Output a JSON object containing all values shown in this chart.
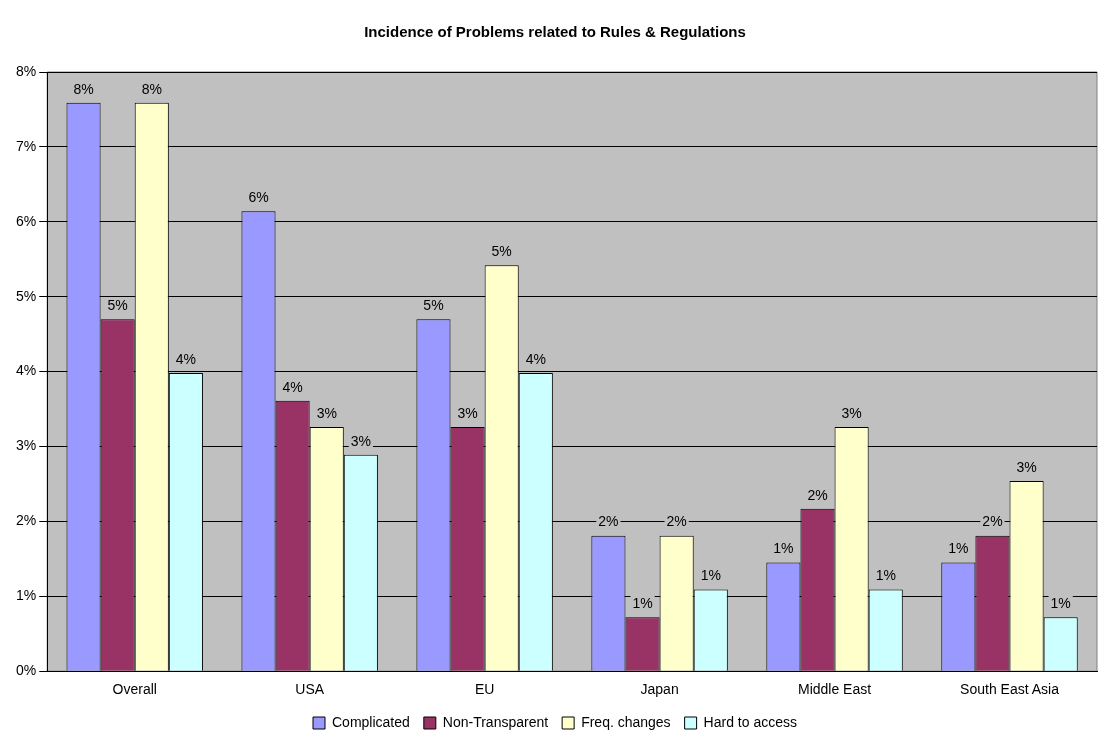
{
  "chart_data": {
    "type": "bar",
    "title": "Incidence of Problems related to Rules & Regulations",
    "categories": [
      "Overall",
      "USA",
      "EU",
      "Japan",
      "Middle East",
      "South East Asia"
    ],
    "series": [
      {
        "name": "Complicated",
        "color": "#9999ff",
        "values": [
          7.59,
          6.14,
          4.7,
          1.81,
          1.45,
          1.45
        ],
        "value_labels": [
          "8%",
          "6%",
          "5%",
          "2%",
          "1%",
          "1%"
        ]
      },
      {
        "name": "Non-Transparent",
        "color": "#993366",
        "values": [
          4.7,
          3.61,
          3.26,
          0.72,
          2.17,
          1.81
        ],
        "value_labels": [
          "5%",
          "4%",
          "3%",
          "1%",
          "2%",
          "2%"
        ]
      },
      {
        "name": "Freq. changes",
        "color": "#ffffcc",
        "values": [
          7.59,
          3.26,
          5.42,
          1.81,
          3.26,
          2.54
        ],
        "value_labels": [
          "8%",
          "3%",
          "5%",
          "2%",
          "3%",
          "3%"
        ]
      },
      {
        "name": "Hard to access",
        "color": "#ccffff",
        "values": [
          3.98,
          2.89,
          3.98,
          1.09,
          1.09,
          0.72
        ],
        "value_labels": [
          "4%",
          "3%",
          "4%",
          "1%",
          "1%",
          "1%"
        ]
      }
    ],
    "ylim": [
      0,
      8
    ],
    "yticks": [
      {
        "value": 0,
        "label": "0%"
      },
      {
        "value": 1,
        "label": "1%"
      },
      {
        "value": 2,
        "label": "2%"
      },
      {
        "value": 3,
        "label": "3%"
      },
      {
        "value": 4,
        "label": "4%"
      },
      {
        "value": 5,
        "label": "5%"
      },
      {
        "value": 6,
        "label": "6%"
      },
      {
        "value": 7,
        "label": "7%"
      },
      {
        "value": 8,
        "label": "8%"
      }
    ],
    "grid": "y",
    "legend": "bottom"
  }
}
